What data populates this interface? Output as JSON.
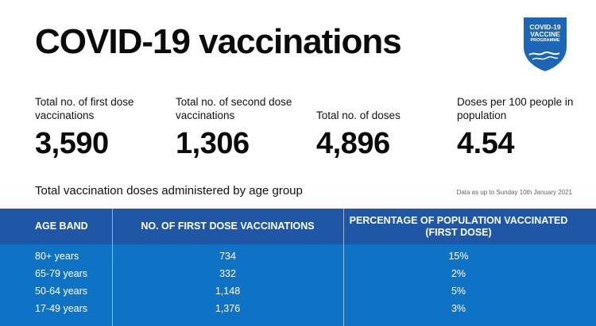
{
  "title": "COVID-19 vaccinations",
  "logo": {
    "line1": "COVID-19",
    "line2": "VACCINE",
    "line3": "PROGRAMME",
    "color": "#1c66b5"
  },
  "stats": [
    {
      "label": "Total no. of first dose vaccinations",
      "value": "3,590"
    },
    {
      "label": "Total no. of second dose vaccinations",
      "value": "1,306"
    },
    {
      "label": "Total no. of doses",
      "value": "4,896"
    },
    {
      "label": "Doses per 100 people in population",
      "value": "4.54"
    }
  ],
  "subtitle": "Total vaccination doses administered by age group",
  "note": "Data as up to Sunday 10th January 2021",
  "table": {
    "headers": [
      "AGE BAND",
      "NO. OF FIRST DOSE VACCINATIONS",
      "PERCENTAGE OF POPULATION VACCINATED (FIRST DOSE)"
    ],
    "rows": [
      [
        "80+ years",
        "734",
        "15%"
      ],
      [
        "65-79 years",
        "332",
        "2%"
      ],
      [
        "50-64 years",
        "1,148",
        "5%"
      ],
      [
        "17-49 years",
        "1,376",
        "3%"
      ]
    ],
    "header_color": "#1f57a6",
    "body_color": "#0e73c4"
  }
}
